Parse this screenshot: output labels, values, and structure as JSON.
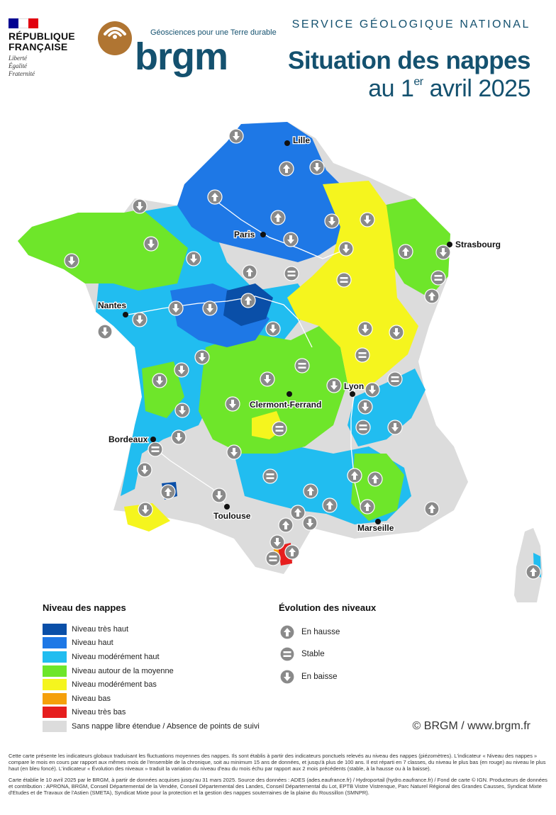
{
  "header": {
    "republic": {
      "title_line1": "RÉPUBLIQUE",
      "title_line2": "FRANÇAISE",
      "motto": [
        "Liberté",
        "Égalité",
        "Fraternité"
      ]
    },
    "brgm": {
      "tagline": "Géosciences pour une Terre durable",
      "wordmark": "brgm"
    },
    "service": "SERVICE GÉOLOGIQUE NATIONAL",
    "title": "Situation des nappes",
    "subtitle_prefix": "au 1",
    "subtitle_sup": "er",
    "subtitle_suffix": " avril 2025"
  },
  "map": {
    "cities": [
      {
        "name": "Lille"
      },
      {
        "name": "Paris"
      },
      {
        "name": "Strasbourg"
      },
      {
        "name": "Nantes"
      },
      {
        "name": "Lyon"
      },
      {
        "name": "Clermont-Ferrand"
      },
      {
        "name": "Bordeaux"
      },
      {
        "name": "Toulouse"
      },
      {
        "name": "Marseille"
      }
    ]
  },
  "legend_levels": {
    "title": "Niveau des nappes",
    "items": [
      {
        "label": "Niveau très haut",
        "color": "#0a4fa8"
      },
      {
        "label": "Niveau haut",
        "color": "#1e78e6"
      },
      {
        "label": "Niveau modérément haut",
        "color": "#21bdf0"
      },
      {
        "label": "Niveau autour de la moyenne",
        "color": "#6ee62a"
      },
      {
        "label": "Niveau modérément bas",
        "color": "#f5f51e"
      },
      {
        "label": "Niveau bas",
        "color": "#f5a00a"
      },
      {
        "label": "Niveau très bas",
        "color": "#e61e1e"
      },
      {
        "label": "Sans nappe libre étendue / Absence de points de suivi",
        "color": "#dcdcdc"
      }
    ]
  },
  "legend_evolution": {
    "title": "Évolution des niveaux",
    "items": [
      {
        "label": "En hausse",
        "icon": "arrow-up-icon"
      },
      {
        "label": "Stable",
        "icon": "equals-icon"
      },
      {
        "label": "En baisse",
        "icon": "arrow-down-icon"
      }
    ]
  },
  "copyright": "© BRGM / www.brgm.fr",
  "notes": [
    "Cette carte présente les indicateurs globaux traduisant les fluctuations moyennes des nappes. Ils sont établis à partir des indicateurs ponctuels relevés au niveau des nappes (piézomètres). L'indicateur « Niveau des nappes » compare le mois en cours par rapport aux mêmes mois de l'ensemble de la chronique, soit au minimum 15 ans de données, et jusqu'à plus de 100 ans. Il est réparti en 7 classes, du niveau le plus bas (en rouge) au niveau le plus haut (en bleu foncé). L'indicateur « Évolution des niveaux » traduit la variation du niveau d'eau du mois échu par rapport aux 2 mois précédents (stable, à la hausse ou à la baisse).",
    "Carte établie le 10 avril 2025 par le BRGM, à partir de données acquises jusqu'au 31 mars 2025. Source des données : ADES (ades.eaufrance.fr) / Hydroportail (hydro.eaufrance.fr) / Fond de carte © IGN. Producteurs de données et contribution : APRONA, BRGM, Conseil Départemental de la Vendée, Conseil Départemental des Landes, Conseil Départemental du Lot, EPTB Vistre Vistrenque, Parc Naturel Régional des Grandes Causses, Syndicat Mixte d'Etudes et de Travaux de l'Astien (SMETA), Syndicat Mixte pour la protection et la gestion des nappes souterraines de la plaine du Roussillon (SMNPR)."
  ]
}
